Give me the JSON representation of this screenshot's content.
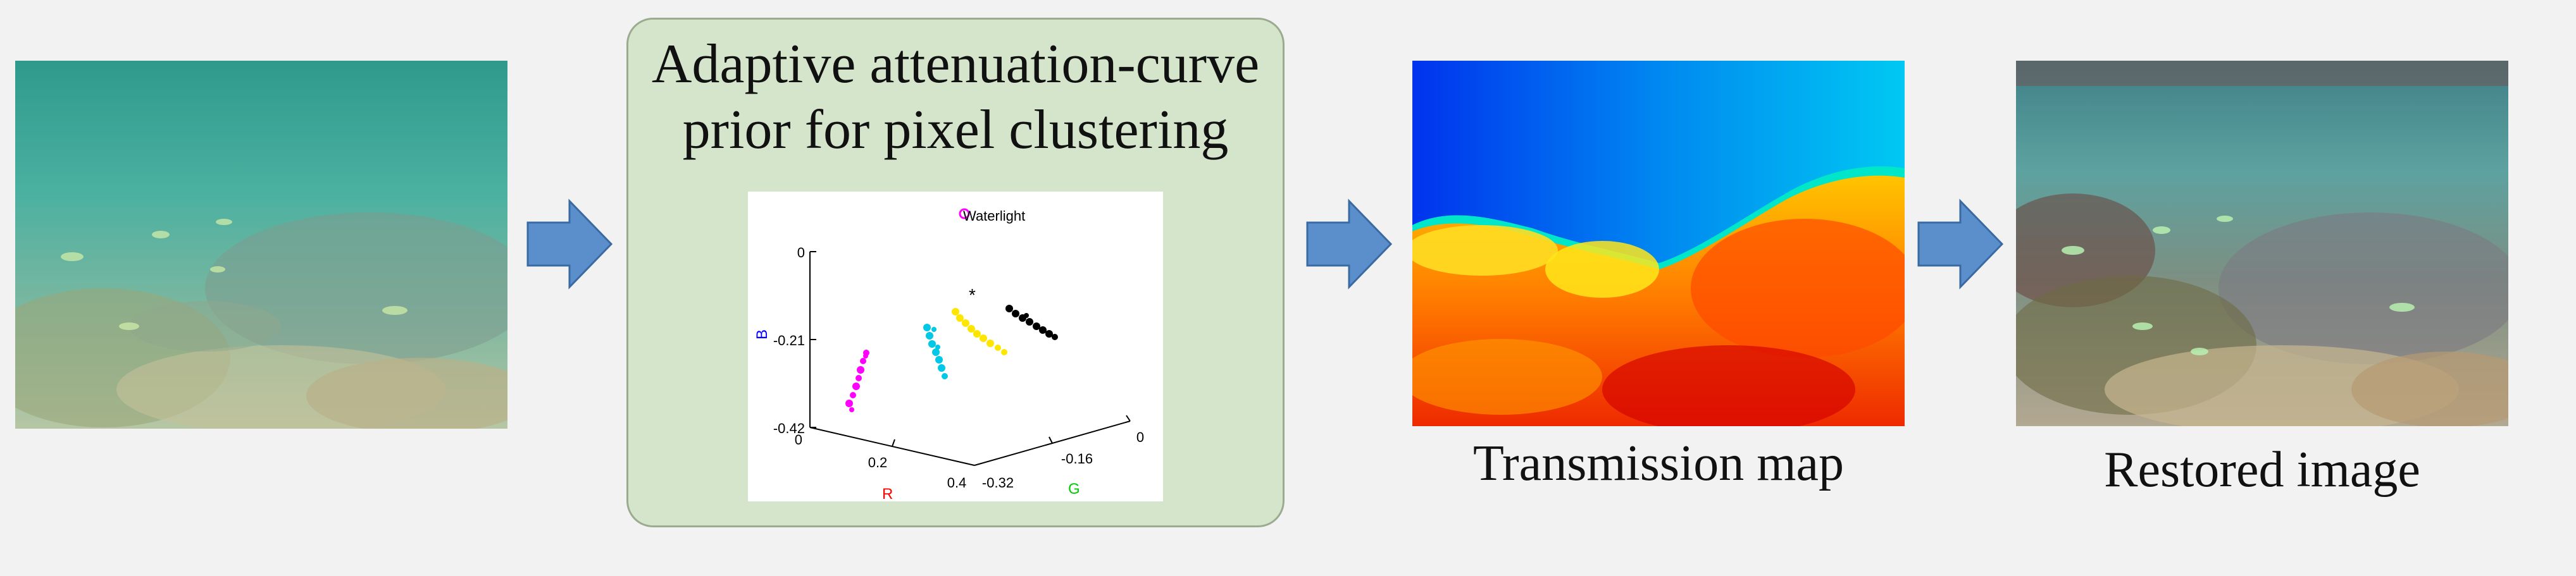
{
  "panel": {
    "title_line1": "Adaptive attenuation-curve",
    "title_line2": "prior for pixel clustering"
  },
  "captions": {
    "transmission": "Transmission map",
    "restored": "Restored image"
  },
  "plot3d": {
    "waterlight_label": "Waterlight",
    "axis_b_label": "B",
    "axis_r_label": "R",
    "axis_g_label": "G",
    "b_ticks": [
      "0",
      "-0.21",
      "-0.42"
    ],
    "r_ticks": [
      "0",
      "0.2",
      "0.4"
    ],
    "g_ticks": [
      "-0.32",
      "-0.16",
      "0"
    ],
    "cluster_colors": [
      "#ff00ff",
      "#00c8e6",
      "#ffe600",
      "#000000"
    ],
    "axis_colors": {
      "B": "#0000ff",
      "R": "#ff0000",
      "G": "#00cc00"
    }
  },
  "colors": {
    "background": "#f2f2f2",
    "panel_fill": "#d5e5cb",
    "arrow_fill": "#5b8fcc",
    "arrow_stroke": "#3a6aa3"
  }
}
